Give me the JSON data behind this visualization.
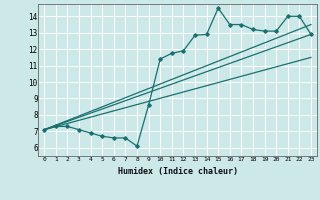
{
  "xlabel": "Humidex (Indice chaleur)",
  "bg_color": "#cce8e8",
  "grid_color": "#ffffff",
  "line_color": "#1a7070",
  "xlim": [
    -0.5,
    23.5
  ],
  "ylim": [
    5.5,
    14.75
  ],
  "xticks": [
    0,
    1,
    2,
    3,
    4,
    5,
    6,
    7,
    8,
    9,
    10,
    11,
    12,
    13,
    14,
    15,
    16,
    17,
    18,
    19,
    20,
    21,
    22,
    23
  ],
  "yticks": [
    6,
    7,
    8,
    9,
    10,
    11,
    12,
    13,
    14
  ],
  "series1_x": [
    0,
    1,
    2,
    3,
    4,
    5,
    6,
    7,
    8,
    9,
    10,
    11,
    12,
    13,
    14,
    15,
    16,
    17,
    18,
    19,
    20,
    21,
    22,
    23
  ],
  "series1_y": [
    7.1,
    7.3,
    7.3,
    7.1,
    6.9,
    6.7,
    6.6,
    6.6,
    6.1,
    8.6,
    11.4,
    11.75,
    11.9,
    12.85,
    12.9,
    14.5,
    13.5,
    13.5,
    13.2,
    13.1,
    13.1,
    14.0,
    14.0,
    12.9
  ],
  "series2_x": [
    0,
    23
  ],
  "series2_y": [
    7.1,
    12.9
  ],
  "series3_x": [
    0,
    23
  ],
  "series3_y": [
    7.1,
    13.5
  ],
  "series4_x": [
    0,
    23
  ],
  "series4_y": [
    7.1,
    11.5
  ]
}
